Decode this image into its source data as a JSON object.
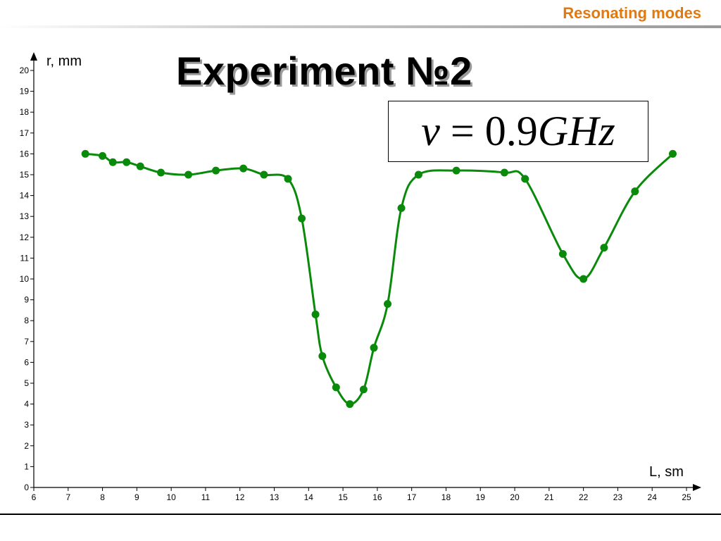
{
  "header": {
    "title": "Resonating modes"
  },
  "slide": {
    "title": "Experiment №2",
    "formula": {
      "symbol": "ν",
      "equals": "=",
      "value": "0.9",
      "unit": "GHz"
    }
  },
  "colors": {
    "accent": "#e07a10",
    "series": "#0a8a0a"
  },
  "chart_data": {
    "type": "line",
    "xlabel": "L, sm",
    "ylabel": "r, mm",
    "xlim": [
      6,
      25
    ],
    "ylim": [
      0,
      20
    ],
    "x_ticks": [
      "6",
      "7",
      "8",
      "9",
      "10",
      "11",
      "12",
      "13",
      "14",
      "15",
      "16",
      "17",
      "18",
      "19",
      "20",
      "21",
      "22",
      "23",
      "24",
      "25"
    ],
    "y_ticks": [
      "0",
      "1",
      "2",
      "3",
      "4",
      "5",
      "6",
      "7",
      "8",
      "9",
      "10",
      "11",
      "12",
      "13",
      "14",
      "15",
      "16",
      "17",
      "18",
      "19",
      "20"
    ],
    "grid": false,
    "smooth": true,
    "series": [
      {
        "points": [
          [
            7.5,
            16.0
          ],
          [
            8.0,
            15.9
          ],
          [
            8.3,
            15.6
          ],
          [
            8.7,
            15.6
          ],
          [
            9.1,
            15.4
          ],
          [
            9.7,
            15.1
          ],
          [
            10.5,
            15.0
          ],
          [
            11.3,
            15.2
          ],
          [
            12.1,
            15.3
          ],
          [
            12.7,
            15.0
          ],
          [
            13.4,
            14.8
          ],
          [
            13.8,
            12.9
          ],
          [
            14.2,
            8.3
          ],
          [
            14.4,
            6.3
          ],
          [
            14.8,
            4.8
          ],
          [
            15.2,
            4.0
          ],
          [
            15.6,
            4.7
          ],
          [
            15.9,
            6.7
          ],
          [
            16.3,
            8.8
          ],
          [
            16.7,
            13.4
          ],
          [
            17.2,
            15.0
          ],
          [
            18.3,
            15.2
          ],
          [
            19.7,
            15.1
          ],
          [
            20.3,
            14.8
          ],
          [
            21.4,
            11.2
          ],
          [
            22.0,
            10.0
          ],
          [
            22.6,
            11.5
          ],
          [
            23.5,
            14.2
          ],
          [
            24.6,
            16.0
          ]
        ]
      }
    ]
  }
}
